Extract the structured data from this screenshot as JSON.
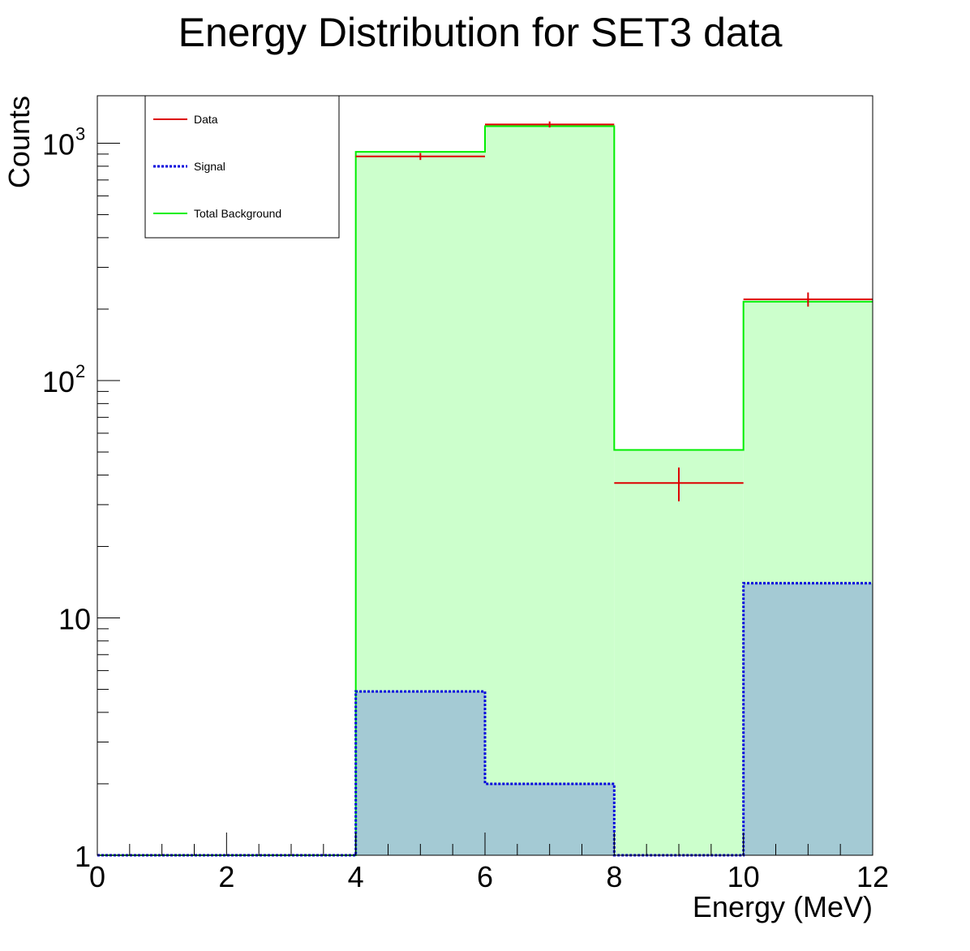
{
  "chart_data": {
    "type": "histogram",
    "title": "Energy Distribution for SET3 data",
    "xlabel": "Energy (MeV)",
    "ylabel": "Counts",
    "xlim": [
      0,
      12
    ],
    "ylim": [
      1,
      1600
    ],
    "yscale": "log",
    "x_ticks": [
      "0",
      "2",
      "4",
      "6",
      "8",
      "10",
      "12"
    ],
    "y_ticks": [
      {
        "base": "1",
        "exp": ""
      },
      {
        "base": "10",
        "exp": ""
      },
      {
        "base": "10",
        "exp": "2"
      },
      {
        "base": "10",
        "exp": "3"
      }
    ],
    "bin_edges": [
      0,
      2,
      4,
      6,
      8,
      10,
      12
    ],
    "series": [
      {
        "name": "Total Background",
        "style": "filled-step",
        "values": [
          1,
          1,
          920,
          1180,
          51,
          215
        ],
        "color": "#00ee00",
        "fill": "#ccffcc"
      },
      {
        "name": "Signal",
        "style": "dotted-step",
        "values": [
          1,
          1,
          4.9,
          2.0,
          1,
          14
        ],
        "color": "#0000dd",
        "fill": "#a4cad4"
      },
      {
        "name": "Data",
        "style": "errorbar",
        "x": [
          5,
          7,
          9,
          11
        ],
        "values": [
          880,
          1200,
          37,
          220
        ],
        "errors": [
          30,
          35,
          6,
          15
        ],
        "color": "#dd0000"
      }
    ],
    "legend": {
      "position": "top-left",
      "entries": [
        "Data",
        "Signal",
        "Total Background"
      ]
    },
    "grid": false
  }
}
